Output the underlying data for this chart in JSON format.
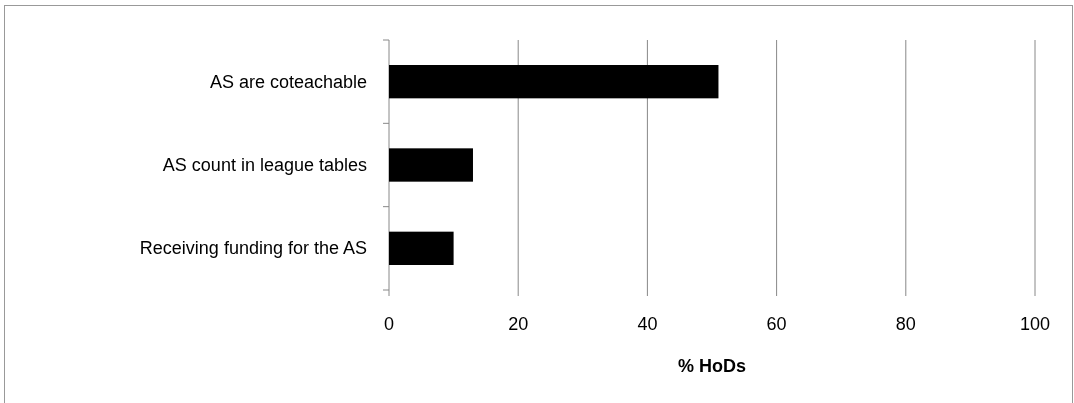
{
  "chart_data": {
    "type": "bar",
    "orientation": "horizontal",
    "categories": [
      "AS are coteachable",
      "AS count in league tables",
      "Receiving funding for the AS"
    ],
    "values": [
      51,
      13,
      10
    ],
    "color": "#000000",
    "xlim": [
      0,
      100
    ],
    "xticks": [
      0,
      20,
      40,
      60,
      80,
      100
    ],
    "xlabel": "% HoDs",
    "grid": "x"
  }
}
